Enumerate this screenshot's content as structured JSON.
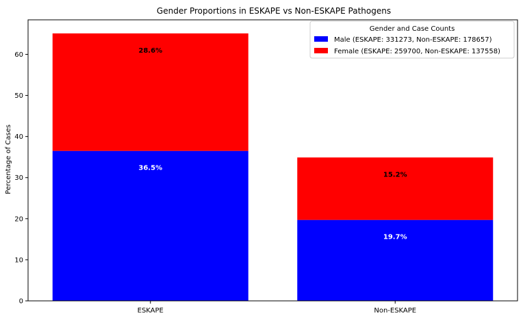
{
  "chart_data": {
    "type": "bar",
    "stacked": true,
    "title": "Gender Proportions in ESKAPE vs Non-ESKAPE Pathogens",
    "xlabel": "",
    "ylabel": "Percentage of Cases",
    "categories": [
      "ESKAPE",
      "Non-ESKAPE"
    ],
    "ylim": [
      0,
      68.4
    ],
    "yticks": [
      0,
      10,
      20,
      30,
      40,
      50,
      60
    ],
    "series": [
      {
        "name": "Male (ESKAPE: 331273, Non-ESKAPE: 178657)",
        "color": "#0000ff",
        "label_color": "#ffffff",
        "values": [
          36.5,
          19.7
        ],
        "labels": [
          "36.5%",
          "19.7%"
        ]
      },
      {
        "name": "Female (ESKAPE: 259700, Non-ESKAPE: 137558)",
        "color": "#ff0000",
        "label_color": "#000000",
        "values": [
          28.6,
          15.2
        ],
        "labels": [
          "28.6%",
          "15.2%"
        ]
      }
    ],
    "legend": {
      "title": "Gender and Case Counts",
      "position": "top-right"
    },
    "grid": false
  }
}
